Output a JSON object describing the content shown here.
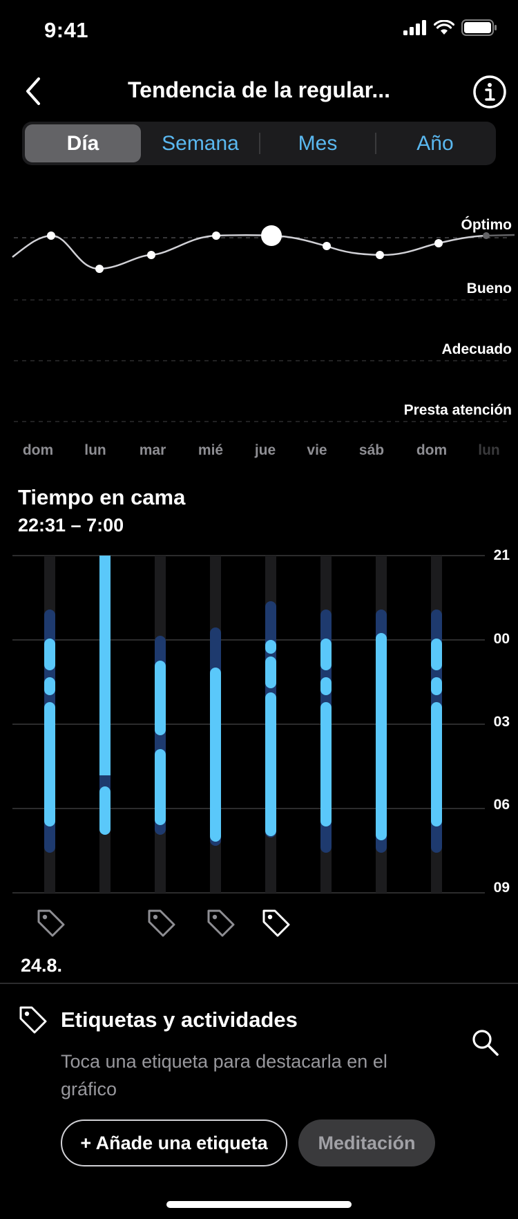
{
  "status": {
    "time": "9:41"
  },
  "header": {
    "title": "Tendencia de la regular..."
  },
  "segments": [
    {
      "label": "Día",
      "active": true
    },
    {
      "label": "Semana",
      "active": false
    },
    {
      "label": "Mes",
      "active": false
    },
    {
      "label": "Año",
      "active": false
    }
  ],
  "trend": {
    "levels": [
      "Óptimo",
      "Bueno",
      "Adecuado",
      "Presta atención"
    ],
    "days": [
      "dom",
      "lun",
      "mar",
      "mié",
      "jue",
      "vie",
      "sáb",
      "dom",
      "lun"
    ],
    "selected_day_index": 4
  },
  "bed_time": {
    "title": "Tiempo en cama",
    "range": "22:31 – 7:00",
    "hour_labels": [
      "21",
      "00",
      "03",
      "06",
      "09"
    ],
    "date": "24.8."
  },
  "tags": {
    "title": "Etiquetas y actividades",
    "subtitle": "Toca una etiqueta para destacarla en el gráfico",
    "add_label": "+ Añade una etiqueta",
    "chip_label": "Meditación"
  },
  "colors": {
    "accent": "#5ab8f0",
    "bar_light": "#5ac8fa",
    "bar_dark": "#1e3a6e",
    "track": "#1c1c1e"
  },
  "icons": [
    "chevron-left-icon",
    "info-icon",
    "tag-icon",
    "search-icon"
  ]
}
